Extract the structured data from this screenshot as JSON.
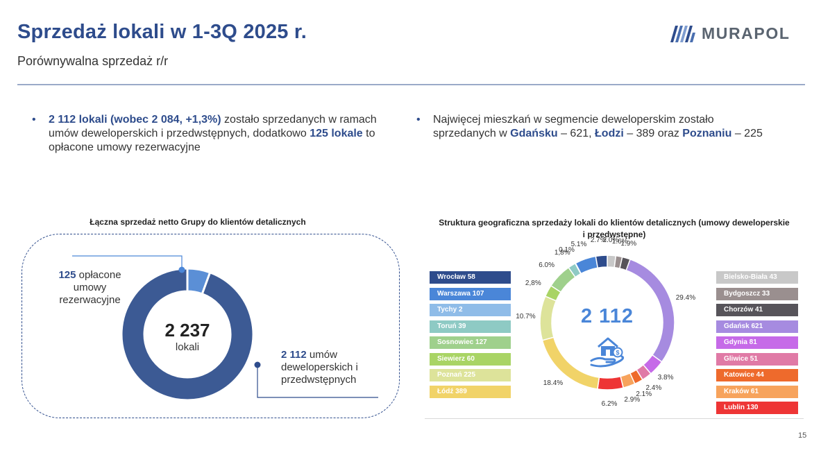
{
  "header": {
    "title": "Sprzedaż lokali w 1-3Q 2025 r.",
    "subtitle": "Porównywalna sprzedaż r/r",
    "logo_text": "MURAPOL"
  },
  "bullets": {
    "left": {
      "b1": "2 112 lokali (wobec 2 084, +1,3%)",
      "t1": " zostało sprzedanych w ramach umów deweloperskich i przedwstępnych, dodatkowo ",
      "b2": "125 lokale",
      "t2": " to opłacone umowy rezerwacyjne"
    },
    "right": {
      "t1": "Najwięcej mieszkań w segmencie deweloperskim zostało sprzedanych w ",
      "b1": "Gdańsku",
      "t2": " – 621, ",
      "b2": "Łodzi",
      "t3": " – 389 oraz ",
      "b3": "Poznaniu",
      "t4": " – 225"
    }
  },
  "left_chart": {
    "title": "Łączna sprzedaż netto Grupy do klientów detalicznych",
    "total_value": "2 237",
    "total_label": "lokali",
    "reservation_value": "125",
    "reservation_label": "opłacone umowy rezerwacyjne",
    "contracts_value": "2 112",
    "contracts_label": "umów deweloperskich i przedwstępnych"
  },
  "right_chart": {
    "title": "Struktura geograficzna sprzedaży lokali do klientów detalicznych (umowy deweloperskie i przedwstępne)",
    "total": "2 112"
  },
  "legend_left": [
    {
      "label": "Wrocław 58",
      "color": "#2e4c8c"
    },
    {
      "label": "Warszawa 107",
      "color": "#4a86d8"
    },
    {
      "label": "Tychy 2",
      "color": "#8fbce8"
    },
    {
      "label": "Toruń 39",
      "color": "#8ecac4"
    },
    {
      "label": "Sosnowiec 127",
      "color": "#9fd08c"
    },
    {
      "label": "Siewierz 60",
      "color": "#a9d465"
    },
    {
      "label": "Poznań 225",
      "color": "#dde39a"
    },
    {
      "label": "Łódź 389",
      "color": "#f1d368"
    }
  ],
  "legend_right": [
    {
      "label": "Bielsko-Biała 43",
      "color": "#c8c8c8"
    },
    {
      "label": "Bydgoszcz 33",
      "color": "#9a8f8f"
    },
    {
      "label": "Chorzów 41",
      "color": "#57545a"
    },
    {
      "label": "Gdańsk 621",
      "color": "#a68be0"
    },
    {
      "label": "Gdynia 81",
      "color": "#c66ae8"
    },
    {
      "label": "Gliwice 51",
      "color": "#e07aa6"
    },
    {
      "label": "Katowice 44",
      "color": "#ee6a2c"
    },
    {
      "label": "Kraków 61",
      "color": "#f7a35c"
    },
    {
      "label": "Lublin 130",
      "color": "#ee3535"
    }
  ],
  "chart_data": [
    {
      "type": "pie",
      "title": "Łączna sprzedaż netto Grupy do klientów detalicznych",
      "categories": [
        "opłacone umowy rezerwacyjne",
        "umowy deweloperskie i przedwstępne"
      ],
      "values": [
        125,
        2112
      ],
      "colors": [
        "#5b8fd6",
        "#3c5a94"
      ]
    },
    {
      "type": "pie",
      "title": "Struktura geograficzna sprzedaży lokali do klientów detalicznych (umowy deweloperskie i przedwstępne)",
      "categories": [
        "Bielsko-Biała",
        "Bydgoszcz",
        "Chorzów",
        "Gdańsk",
        "Gdynia",
        "Gliwice",
        "Katowice",
        "Kraków",
        "Lublin",
        "Łódź",
        "Poznań",
        "Siewierz",
        "Sosnowiec",
        "Toruń",
        "Tychy",
        "Warszawa",
        "Wrocław"
      ],
      "values": [
        43,
        33,
        41,
        621,
        81,
        51,
        44,
        61,
        130,
        389,
        225,
        60,
        127,
        39,
        2,
        107,
        58
      ],
      "percent_labels": [
        "2.0%",
        "1.6%",
        "1.9%",
        "29.4%",
        "3.8%",
        "2.4%",
        "2.1%",
        "2.9%",
        "6.2%",
        "18.4%",
        "10.7%",
        "2,8%",
        "6.0%",
        "1,8%",
        "0.1%",
        "5.1%",
        "2.7%"
      ],
      "colors": [
        "#c8c8c8",
        "#9a8f8f",
        "#57545a",
        "#a68be0",
        "#c66ae8",
        "#e07aa6",
        "#ee6a2c",
        "#f7a35c",
        "#ee3535",
        "#f1d368",
        "#dde39a",
        "#a9d465",
        "#9fd08c",
        "#8ecac4",
        "#8fbce8",
        "#4a86d8",
        "#2e4c8c"
      ]
    }
  ],
  "page_number": "15"
}
